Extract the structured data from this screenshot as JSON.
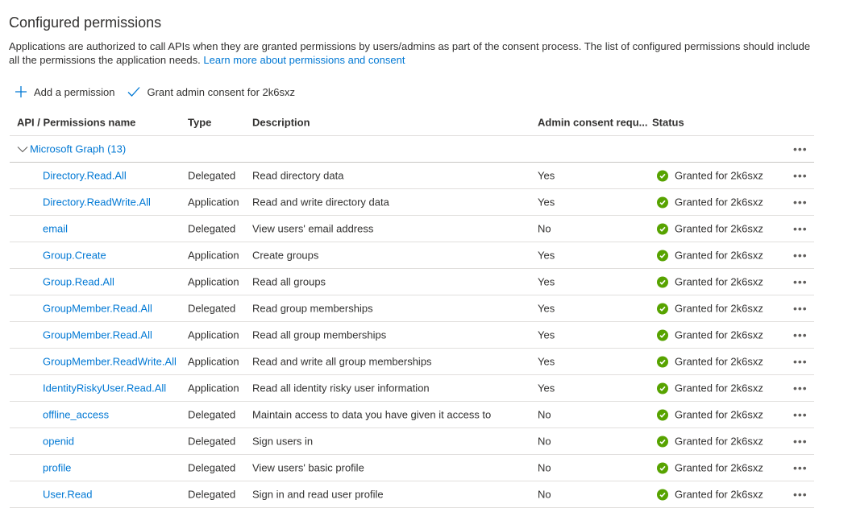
{
  "title": "Configured permissions",
  "intro": "Applications are authorized to call APIs when they are granted permissions by users/admins as part of the consent process. The list of configured permissions should include all the permissions the application needs.",
  "learn_more": "Learn more about permissions and consent",
  "toolbar": {
    "add": "Add a permission",
    "grant": "Grant admin consent for 2k6sxz"
  },
  "columns": [
    "API / Permissions name",
    "Type",
    "Description",
    "Admin consent requ...",
    "Status"
  ],
  "group": {
    "label": "Microsoft Graph (13)",
    "more": "•••"
  },
  "colors": {
    "accent": "#0078d4",
    "granted": "#57a300"
  },
  "rows": [
    {
      "name": "Directory.Read.All",
      "type": "Delegated",
      "desc": "Read directory data",
      "admin": "Yes",
      "status": "Granted for 2k6sxz"
    },
    {
      "name": "Directory.ReadWrite.All",
      "type": "Application",
      "desc": "Read and write directory data",
      "admin": "Yes",
      "status": "Granted for 2k6sxz"
    },
    {
      "name": "email",
      "type": "Delegated",
      "desc": "View users' email address",
      "admin": "No",
      "status": "Granted for 2k6sxz"
    },
    {
      "name": "Group.Create",
      "type": "Application",
      "desc": "Create groups",
      "admin": "Yes",
      "status": "Granted for 2k6sxz"
    },
    {
      "name": "Group.Read.All",
      "type": "Application",
      "desc": "Read all groups",
      "admin": "Yes",
      "status": "Granted for 2k6sxz"
    },
    {
      "name": "GroupMember.Read.All",
      "type": "Delegated",
      "desc": "Read group memberships",
      "admin": "Yes",
      "status": "Granted for 2k6sxz"
    },
    {
      "name": "GroupMember.Read.All",
      "type": "Application",
      "desc": "Read all group memberships",
      "admin": "Yes",
      "status": "Granted for 2k6sxz"
    },
    {
      "name": "GroupMember.ReadWrite.All",
      "type": "Application",
      "desc": "Read and write all group memberships",
      "admin": "Yes",
      "status": "Granted for 2k6sxz"
    },
    {
      "name": "IdentityRiskyUser.Read.All",
      "type": "Application",
      "desc": "Read all identity risky user information",
      "admin": "Yes",
      "status": "Granted for 2k6sxz"
    },
    {
      "name": "offline_access",
      "type": "Delegated",
      "desc": "Maintain access to data you have given it access to",
      "admin": "No",
      "status": "Granted for 2k6sxz"
    },
    {
      "name": "openid",
      "type": "Delegated",
      "desc": "Sign users in",
      "admin": "No",
      "status": "Granted for 2k6sxz"
    },
    {
      "name": "profile",
      "type": "Delegated",
      "desc": "View users' basic profile",
      "admin": "No",
      "status": "Granted for 2k6sxz"
    },
    {
      "name": "User.Read",
      "type": "Delegated",
      "desc": "Sign in and read user profile",
      "admin": "No",
      "status": "Granted for 2k6sxz"
    }
  ]
}
